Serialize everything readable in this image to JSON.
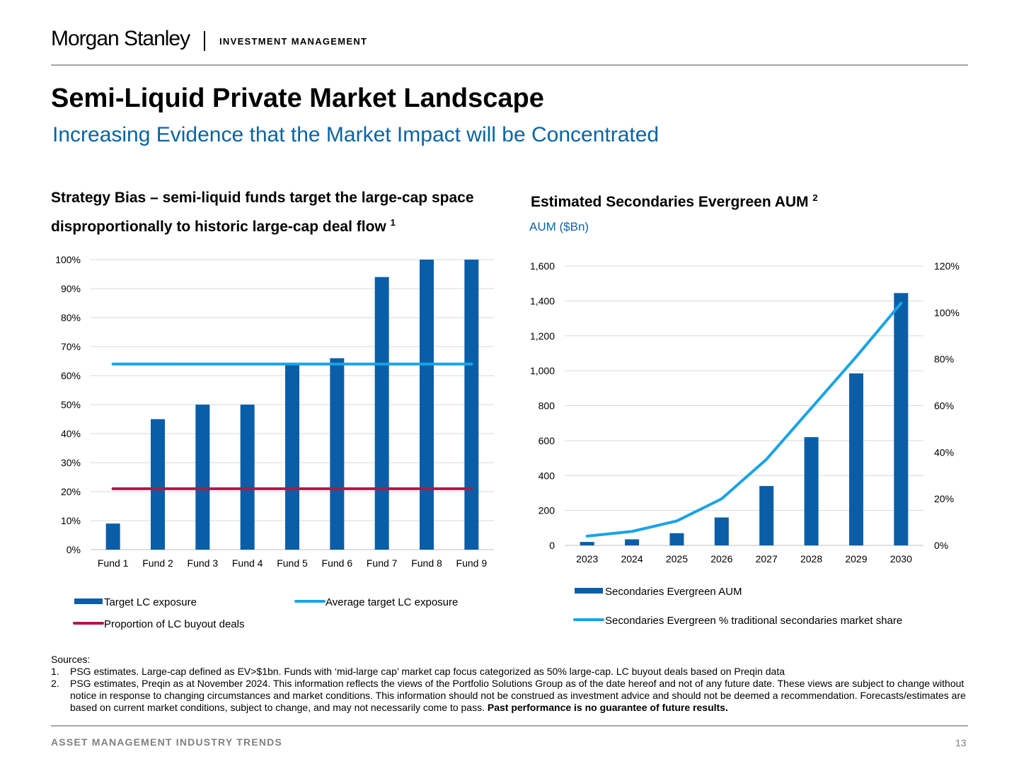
{
  "header": {
    "logo_text": "Morgan Stanley",
    "logo_subtext": "INVESTMENT MANAGEMENT"
  },
  "title": "Semi-Liquid Private Market Landscape",
  "subtitle": "Increasing Evidence that the Market Impact will be Concentrated",
  "left_panel": {
    "heading": "Strategy Bias – semi-liquid funds target the large-cap space disproportionally to historic large-cap deal flow",
    "heading_note": "1"
  },
  "right_panel": {
    "heading": "Estimated Secondaries Evergreen AUM",
    "heading_note": "2",
    "unit_label": "AUM ($Bn)"
  },
  "chart_data": [
    {
      "type": "bar",
      "categories": [
        "Fund 1",
        "Fund 2",
        "Fund 3",
        "Fund 4",
        "Fund 5",
        "Fund 6",
        "Fund 7",
        "Fund 8",
        "Fund 9"
      ],
      "series": [
        {
          "name": "Target LC exposure",
          "type": "bar",
          "values": [
            9,
            45,
            50,
            50,
            64,
            66,
            94,
            100,
            100
          ],
          "color": "#0a5ea8"
        },
        {
          "name": "Average target LC exposure",
          "type": "line",
          "values": [
            64,
            64,
            64,
            64,
            64,
            64,
            64,
            64,
            64
          ],
          "color": "#1aa3e6"
        },
        {
          "name": "Proportion of LC buyout deals",
          "type": "line",
          "values": [
            21,
            21,
            21,
            21,
            21,
            21,
            21,
            21,
            21
          ],
          "color": "#b0164e"
        }
      ],
      "ylim": [
        0,
        100
      ],
      "yticks": [
        "0%",
        "10%",
        "20%",
        "30%",
        "40%",
        "50%",
        "60%",
        "70%",
        "80%",
        "90%",
        "100%"
      ],
      "grid": true,
      "legend_position": "bottom"
    },
    {
      "type": "bar",
      "categories": [
        "2023",
        "2024",
        "2025",
        "2026",
        "2027",
        "2028",
        "2029",
        "2030"
      ],
      "series": [
        {
          "name": "Secondaries Evergreen AUM",
          "type": "bar",
          "axis": "left",
          "values": [
            20,
            35,
            70,
            160,
            340,
            620,
            985,
            1445
          ],
          "color": "#0a5ea8"
        },
        {
          "name": "Secondaries Evergreen % traditional secondaries market share",
          "type": "line",
          "axis": "right",
          "values": [
            4,
            6,
            10.5,
            20,
            37,
            59,
            81,
            104
          ],
          "color": "#1aa3e6"
        }
      ],
      "ylim_left": [
        0,
        1600
      ],
      "yticks_left": [
        "0",
        "200",
        "400",
        "600",
        "800",
        "1,000",
        "1,200",
        "1,400",
        "1,600"
      ],
      "ylim_right": [
        0,
        120
      ],
      "yticks_right": [
        "0%",
        "20%",
        "40%",
        "60%",
        "80%",
        "100%",
        "120%"
      ],
      "grid": true,
      "legend_position": "bottom"
    }
  ],
  "sources": {
    "label": "Sources:",
    "notes": [
      {
        "num": "1.",
        "text": "PSG estimates. Large-cap defined as EV>$1bn. Funds with ‘mid-large cap’ market cap focus categorized as 50% large-cap. LC buyout deals based on Preqin data",
        "bold": ""
      },
      {
        "num": "2.",
        "text": "PSG estimates, Preqin as at November 2024. This information reflects the views of the Portfolio Solutions Group as of the date hereof and not of any future date. These views are subject to change without notice in response to changing circumstances and market conditions. This information should not be construed as investment advice and should not be deemed a recommendation. Forecasts/estimates are based on current market conditions, subject to change, and may not necessarily come to pass.",
        "bold": "Past performance is no guarantee of future results."
      }
    ]
  },
  "footer": {
    "left": "ASSET MANAGEMENT INDUSTRY TRENDS",
    "page_number": "13"
  }
}
